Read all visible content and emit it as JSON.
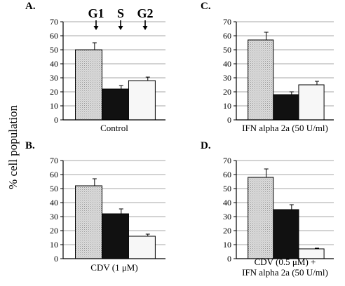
{
  "figure": {
    "ylabel": "% cell population"
  },
  "chart_data": [
    {
      "type": "bar",
      "panel_label": "A.",
      "title": "Control",
      "categories": [
        "G1",
        "S",
        "G2"
      ],
      "category_labels_shown": [
        "G1",
        "S",
        "G2"
      ],
      "values": [
        50,
        22,
        28
      ],
      "errors": [
        5,
        2.5,
        2.5
      ],
      "ylim": [
        0,
        70
      ],
      "yticks": [
        0,
        10,
        20,
        30,
        40,
        50,
        60,
        70
      ],
      "grid": true,
      "bar_fills": [
        "#d4d4d4",
        "#111111",
        "#f7f7f7"
      ]
    },
    {
      "type": "bar",
      "panel_label": "C.",
      "title": "IFN alpha 2a (50 U/ml)",
      "categories": [
        "G1",
        "S",
        "G2"
      ],
      "values": [
        57,
        18,
        25
      ],
      "errors": [
        5.5,
        2,
        2.5
      ],
      "ylim": [
        0,
        70
      ],
      "yticks": [
        0,
        10,
        20,
        30,
        40,
        50,
        60,
        70
      ],
      "grid": true,
      "bar_fills": [
        "#d4d4d4",
        "#111111",
        "#f7f7f7"
      ]
    },
    {
      "type": "bar",
      "panel_label": "B.",
      "title": "CDV (1 μM)",
      "categories": [
        "G1",
        "S",
        "G2"
      ],
      "values": [
        52,
        32,
        16
      ],
      "errors": [
        5,
        3.5,
        1.5
      ],
      "ylim": [
        0,
        70
      ],
      "yticks": [
        0,
        10,
        20,
        30,
        40,
        50,
        60,
        70
      ],
      "grid": true,
      "bar_fills": [
        "#d4d4d4",
        "#111111",
        "#f7f7f7"
      ]
    },
    {
      "type": "bar",
      "panel_label": "D.",
      "title": "CDV (0.5 μM) +",
      "title_line2": "IFN alpha 2a (50 U/ml)",
      "categories": [
        "G1",
        "S",
        "G2"
      ],
      "values": [
        58,
        35,
        7
      ],
      "errors": [
        6,
        3.5,
        0.5
      ],
      "ylim": [
        0,
        70
      ],
      "yticks": [
        0,
        10,
        20,
        30,
        40,
        50,
        60,
        70
      ],
      "grid": true,
      "bar_fills": [
        "#d4d4d4",
        "#111111",
        "#f7f7f7"
      ]
    }
  ]
}
